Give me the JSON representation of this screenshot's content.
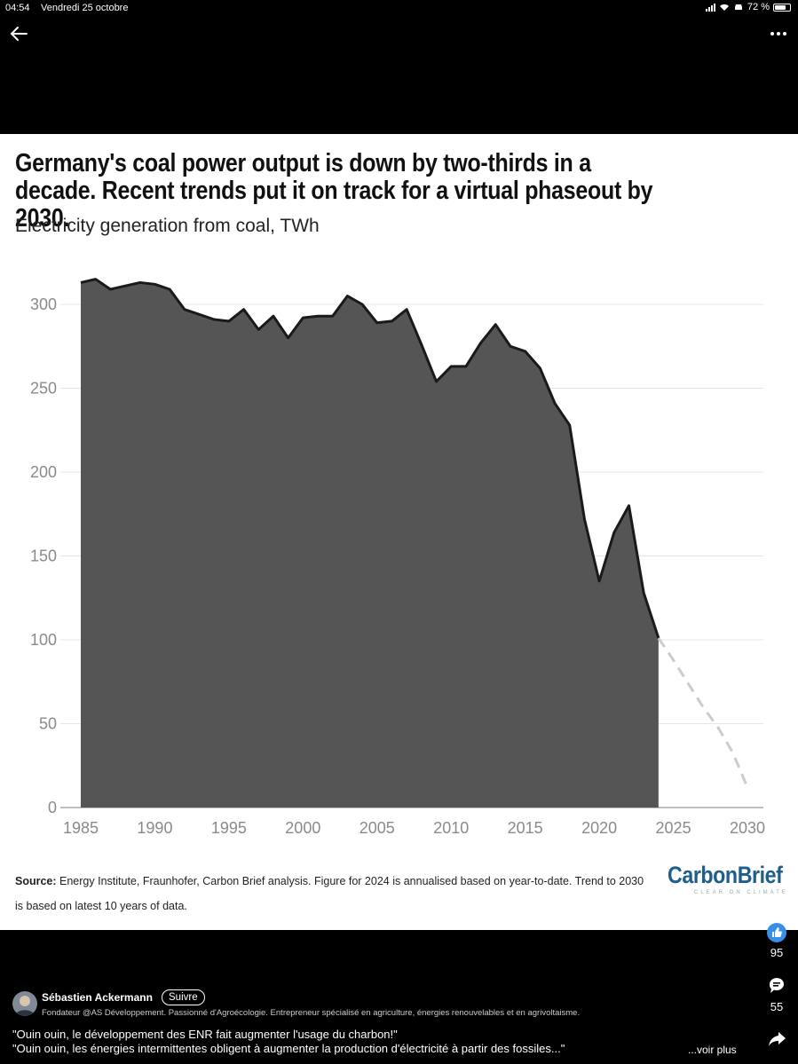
{
  "status_bar": {
    "time": "04:54",
    "date": "Vendredi 25 octobre",
    "battery": "72 %",
    "battery_level": 0.72
  },
  "nav": {
    "back_icon": "arrow-left-icon",
    "more_icon": "ellipsis-icon"
  },
  "chart_data": {
    "type": "area",
    "title": "Germany's coal power output is down by two-thirds in a decade. Recent trends put it on track for a virtual phaseout by 2030.",
    "subtitle": "Electricity generation from coal, TWh",
    "xlabel": "",
    "ylabel": "",
    "xlim": [
      1985,
      2030
    ],
    "ylim": [
      0,
      320
    ],
    "x_ticks": [
      1985,
      1990,
      1995,
      2000,
      2005,
      2010,
      2015,
      2020,
      2025,
      2030
    ],
    "y_ticks": [
      0,
      50,
      100,
      150,
      200,
      250,
      300
    ],
    "grid": "horizontal",
    "x": [
      1985,
      1986,
      1987,
      1988,
      1989,
      1990,
      1991,
      1992,
      1993,
      1994,
      1995,
      1996,
      1997,
      1998,
      1999,
      2000,
      2001,
      2002,
      2003,
      2004,
      2005,
      2006,
      2007,
      2008,
      2009,
      2010,
      2011,
      2012,
      2013,
      2014,
      2015,
      2016,
      2017,
      2018,
      2019,
      2020,
      2021,
      2022,
      2023,
      2024
    ],
    "values": [
      313,
      315,
      309,
      311,
      313,
      312,
      309,
      297,
      294,
      291,
      290,
      297,
      285,
      293,
      280,
      292,
      293,
      293,
      305,
      300,
      289,
      290,
      297,
      276,
      254,
      263,
      263,
      277,
      288,
      275,
      272,
      262,
      241,
      228,
      172,
      135,
      164,
      180,
      128,
      101
    ],
    "trend": {
      "x": [
        2024,
        2025,
        2026,
        2027,
        2028,
        2029,
        2030
      ],
      "values": [
        101,
        88,
        74,
        60,
        48,
        33,
        12
      ],
      "style": "dashed"
    },
    "colors": {
      "fill": "#555555",
      "line": "#1a1a1a",
      "trend": "#cccccc",
      "grid": "#e5e5e5",
      "tick_text": "#8a8a8a"
    }
  },
  "source": {
    "label": "Source:",
    "text": " Energy Institute, Fraunhofer, Carbon Brief analysis. Figure for 2024 is annualised based on year-to-date. Trend to 2030 is based on latest 10 years of data."
  },
  "logo": {
    "text": "CarbonBrief",
    "tagline": "CLEAR ON CLIMATE"
  },
  "actions": {
    "reactions_count": "95",
    "comments_count": "55",
    "reaction_icon": "thumbs-up-icon",
    "comment_icon": "comment-icon",
    "share_icon": "share-icon"
  },
  "post": {
    "author_name": "Sébastien Ackermann",
    "follow_label": "Suivre",
    "author_bio": "Fondateur @AS Développement. Passionné d'Agroécologie. Entrepreneur spécialisé en agriculture, énergies renouvelables et en agrivoltaisme.",
    "line1": "\"Ouin ouin, le développement des ENR fait augmenter l'usage du charbon!\"",
    "line2": "\"Ouin ouin, les énergies intermittentes obligent à augmenter la production d'électricité à partir des fossiles...\"",
    "see_more": "...voir plus"
  }
}
